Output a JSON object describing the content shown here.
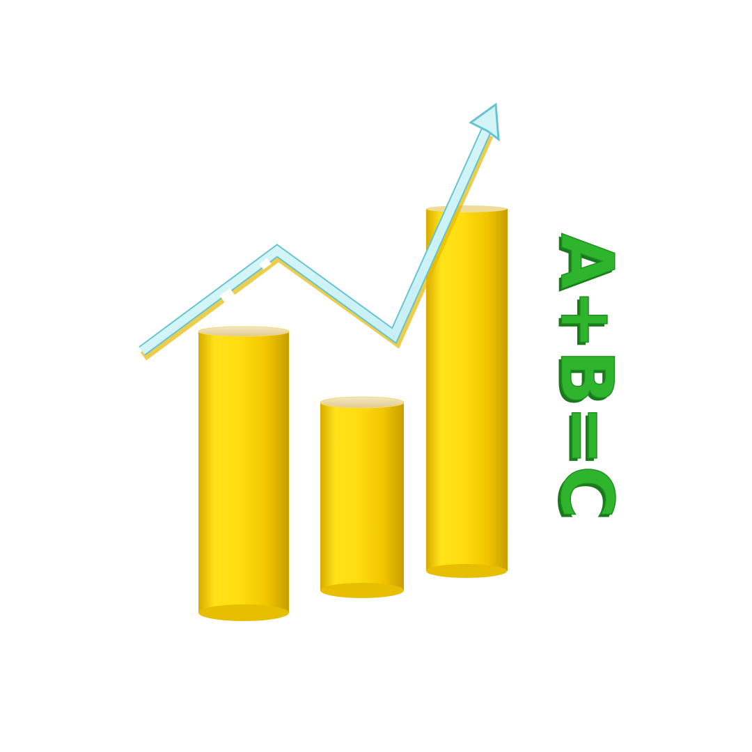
{
  "illustration": {
    "subject": "3d-bar-chart-with-trend-arrow",
    "bars": [
      {
        "relative_height": 0.68
      },
      {
        "relative_height": 0.45
      },
      {
        "relative_height": 1.0
      }
    ],
    "trend": "up",
    "formula_text": "A+B=C",
    "colors": {
      "bar_light": "#ffe21a",
      "bar_mid": "#f6c900",
      "bar_dark": "#c9a000",
      "bar_top": "#e9d6a4",
      "arrow_fill": "#cdf3f6",
      "arrow_edge": "#66c4d1",
      "formula_front": "#2fb52d",
      "formula_shadow": "#17791a",
      "background": "#ffffff"
    }
  }
}
